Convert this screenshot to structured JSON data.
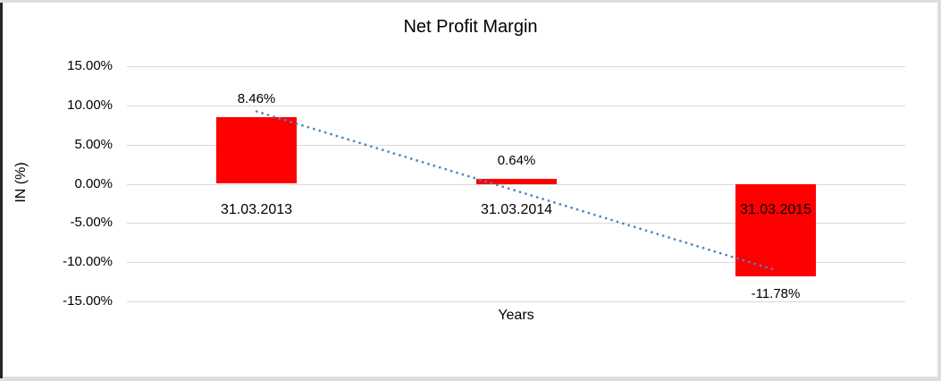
{
  "window": {
    "background": "#ffffff",
    "border_left_color": "#262626",
    "border_color": "#dedede"
  },
  "chart_data": {
    "type": "bar",
    "title": "Net Profit Margin",
    "xlabel": "Years",
    "ylabel": "IN (%)",
    "categories": [
      "31.03.2013",
      "31.03.2014",
      "31.03.2015"
    ],
    "values": [
      8.46,
      0.64,
      -11.78
    ],
    "data_labels": [
      "8.46%",
      "0.64%",
      "-11.78%"
    ],
    "bar_color": "#ff0000",
    "text_color": "#000000",
    "y_ticks": [
      {
        "label": "15.00%",
        "value": 15
      },
      {
        "label": "10.00%",
        "value": 10
      },
      {
        "label": "5.00%",
        "value": 5
      },
      {
        "label": "0.00%",
        "value": 0
      },
      {
        "label": "-5.00%",
        "value": -5
      },
      {
        "label": "-10.00%",
        "value": -10
      },
      {
        "label": "-15.00%",
        "value": -15
      }
    ],
    "ylim": [
      -15,
      15
    ],
    "grid": true,
    "gridline_color": "#d9d9d9",
    "legend": "none",
    "trendline": {
      "type": "linear",
      "style": "dotted",
      "color": "#4e86c5",
      "values_at_categories": [
        9.23,
        -0.89,
        -11.01
      ]
    }
  }
}
